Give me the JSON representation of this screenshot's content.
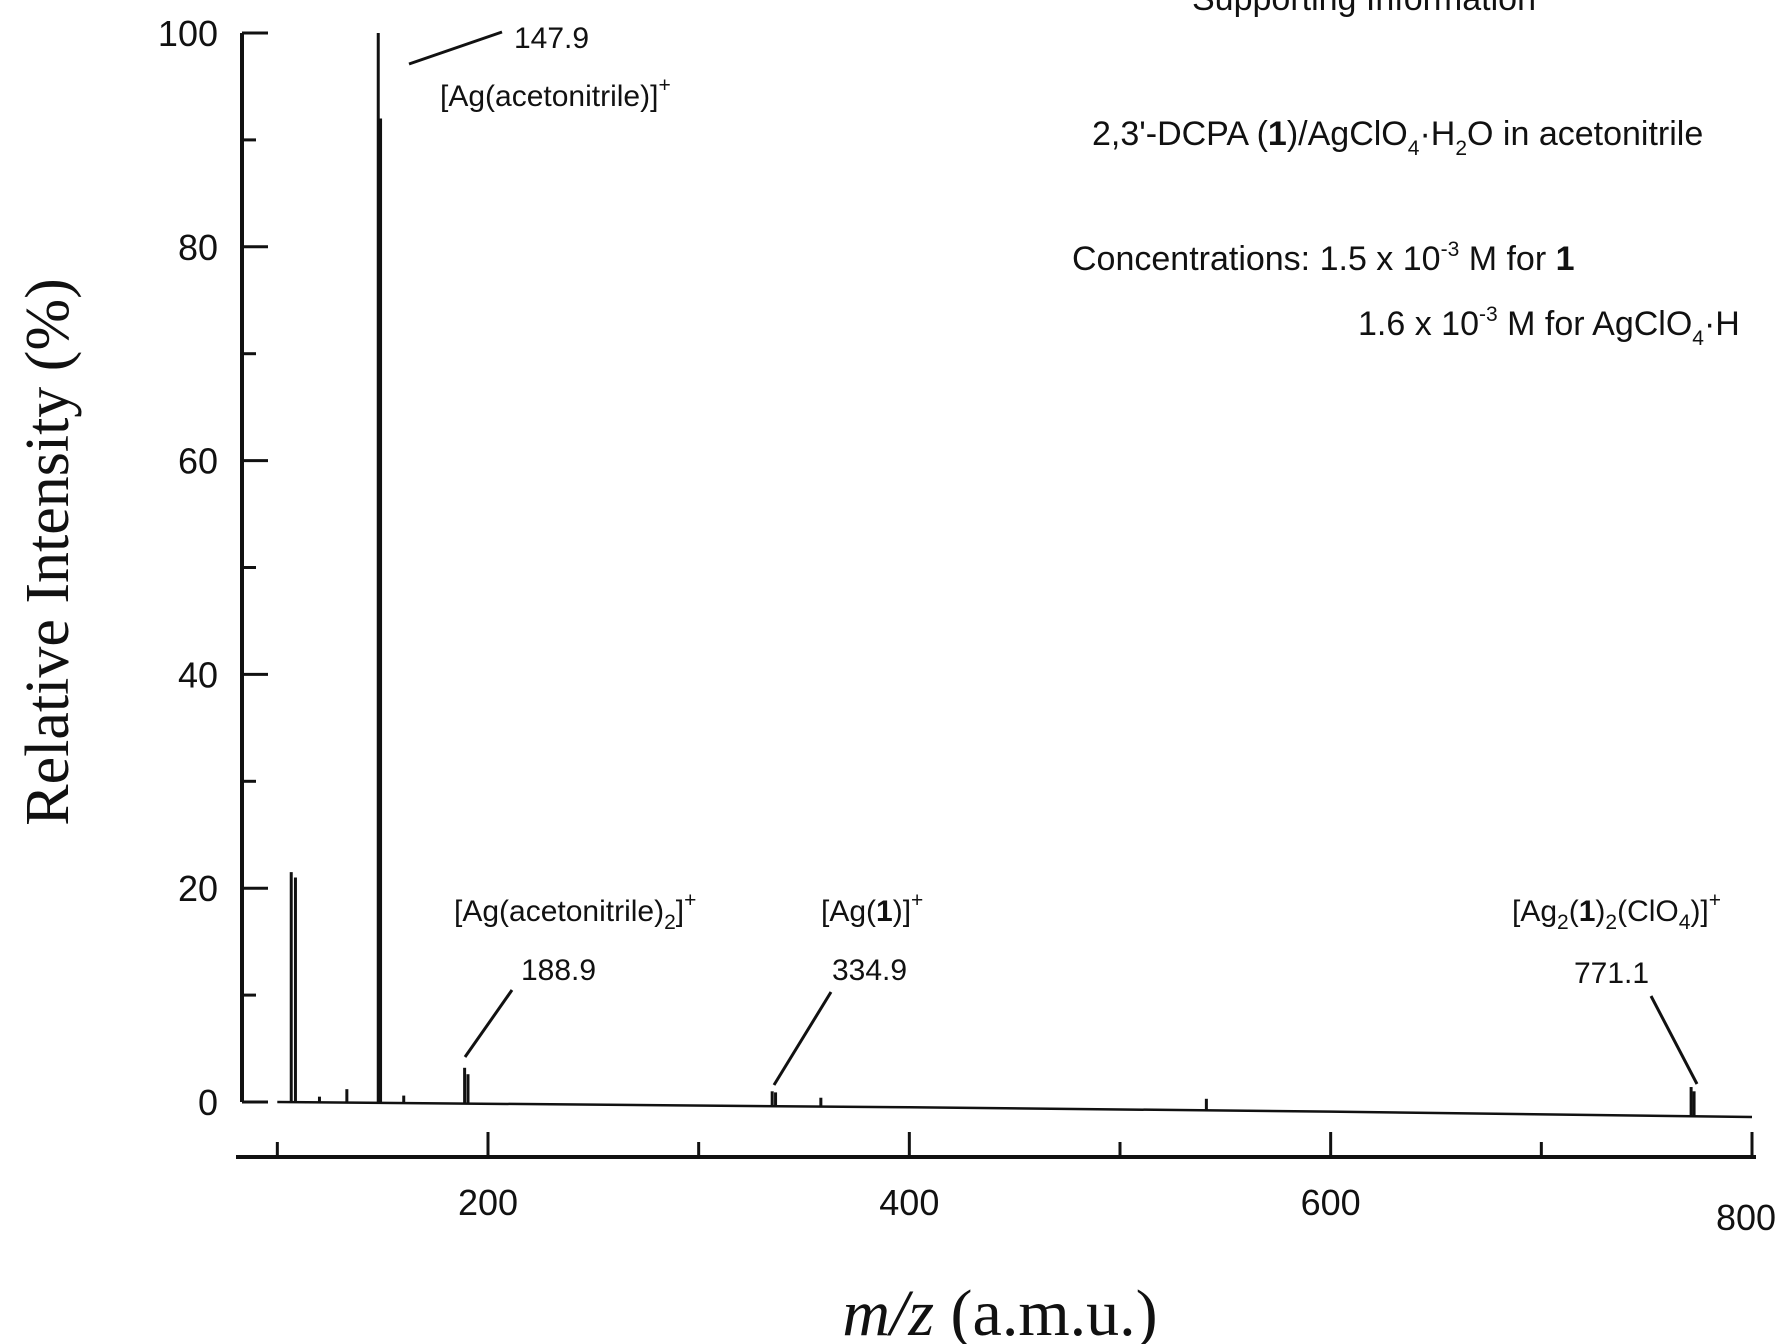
{
  "header": {
    "partial_title": "Supporting Information"
  },
  "info": {
    "sample_prefix": "2,3'-DCPA (",
    "sample_bold": "1",
    "sample_mid": ")/AgClO",
    "sample_sub": "4",
    "sample_dot": "·H",
    "sample_sub2": "2",
    "sample_suffix": "O in acetonitrile",
    "conc_label": "Concentrations: ",
    "conc1_value": "1.5 x 10",
    "conc1_exp": "-3",
    "conc1_unit": " M for ",
    "conc1_bold": "1",
    "conc2_value": "1.6 x 10",
    "conc2_exp": "-3",
    "conc2_unit": " M for AgClO",
    "conc2_sub": "4",
    "conc2_tail": "·H"
  },
  "axes": {
    "ylabel": "Relative Intensity (%)",
    "xlabel_italic": "m/z",
    "xlabel_rest": " (a.m.u.)",
    "yticks": [
      "0",
      "20",
      "40",
      "60",
      "80",
      "100"
    ],
    "xticks": [
      "200",
      "400",
      "600",
      "800"
    ]
  },
  "peak_labels": [
    {
      "mz": "147.9",
      "ion_pre": "[Ag(acetonitrile)]",
      "ion_sub": "",
      "ion_mid": "",
      "ion_sup": "+"
    },
    {
      "mz": "188.9",
      "ion_pre": "[Ag(acetonitrile)",
      "ion_sub": "2",
      "ion_mid": "]",
      "ion_sup": "+"
    },
    {
      "mz": "334.9",
      "ion_pre": "[Ag(",
      "ion_bold": "1",
      "ion_mid": ")]",
      "ion_sup": "+"
    },
    {
      "mz": "771.1",
      "ion_pre": "[Ag",
      "ion_sub": "2",
      "ion_mid2": "(",
      "ion_bold": "1",
      "ion_mid3": ")",
      "ion_sub2": "2",
      "ion_mid4": "(ClO",
      "ion_sub3": "4",
      "ion_mid": ")]",
      "ion_sup": "+"
    }
  ],
  "chart_data": {
    "type": "line",
    "xlabel": "m/z (a.m.u.)",
    "ylabel": "Relative Intensity (%)",
    "xlim": [
      80,
      800
    ],
    "ylim": [
      0,
      100
    ],
    "grid": false,
    "x_major_ticks": [
      200,
      400,
      600,
      800
    ],
    "x_minor_ticks": [
      100,
      300,
      500,
      700
    ],
    "y_major_ticks": [
      0,
      20,
      40,
      60,
      80,
      100
    ],
    "y_minor_ticks": [
      10,
      30,
      50,
      70,
      90
    ],
    "baseline": [
      [
        100,
        0
      ],
      [
        400,
        -0.5
      ],
      [
        600,
        -0.9
      ],
      [
        800,
        -1.4
      ]
    ],
    "peaks": [
      {
        "x": 106.6,
        "y": 21.5
      },
      {
        "x": 108.6,
        "y": 21.0
      },
      {
        "x": 120,
        "y": 0.5
      },
      {
        "x": 133,
        "y": 1.2
      },
      {
        "x": 147.9,
        "y": 100
      },
      {
        "x": 149.0,
        "y": 92
      },
      {
        "x": 160,
        "y": 0.6
      },
      {
        "x": 188.9,
        "y": 3.2
      },
      {
        "x": 190.5,
        "y": 2.6
      },
      {
        "x": 334.9,
        "y": 1.0
      },
      {
        "x": 336.5,
        "y": 0.9
      },
      {
        "x": 358,
        "y": 0.4
      },
      {
        "x": 541,
        "y": 0.3
      },
      {
        "x": 771.1,
        "y": 1.4
      },
      {
        "x": 772.5,
        "y": 1.0
      }
    ],
    "annotations": [
      {
        "x": 147.9,
        "label": "147.9",
        "ion": "[Ag(acetonitrile)]+"
      },
      {
        "x": 188.9,
        "label": "188.9",
        "ion": "[Ag(acetonitrile)2]+"
      },
      {
        "x": 334.9,
        "label": "334.9",
        "ion": "[Ag(1)]+"
      },
      {
        "x": 771.1,
        "label": "771.1",
        "ion": "[Ag2(1)2(ClO4)]+"
      }
    ]
  }
}
